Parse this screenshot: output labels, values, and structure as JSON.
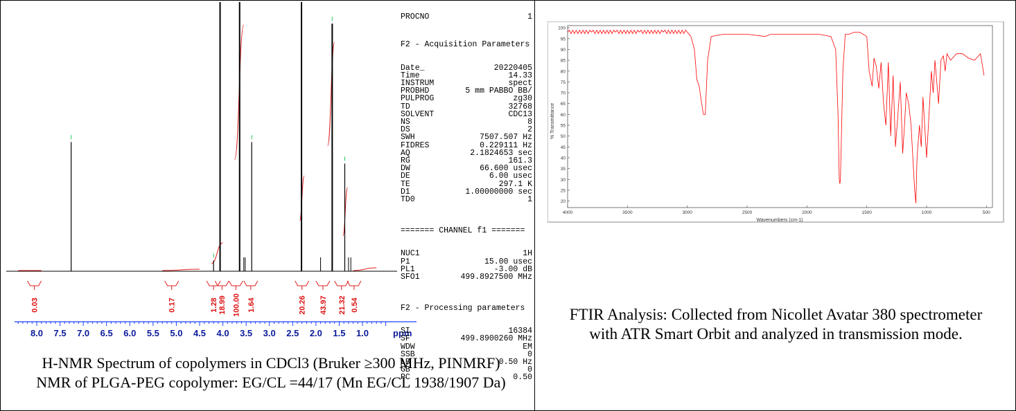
{
  "nmr": {
    "params_header_cut": "PROCNO",
    "params_header_cut_value": "1",
    "acq_title": "F2 - Acquisition Parameters",
    "acq_params": [
      {
        "k": "Date_",
        "v": "20220405"
      },
      {
        "k": "Time",
        "v": "14.33"
      },
      {
        "k": "INSTRUM",
        "v": "spect"
      },
      {
        "k": "PROBHD",
        "v": "5 mm PABBO BB/"
      },
      {
        "k": "PULPROG",
        "v": "zg30"
      },
      {
        "k": "TD",
        "v": "32768"
      },
      {
        "k": "SOLVENT",
        "v": "CDC13"
      },
      {
        "k": "NS",
        "v": "8"
      },
      {
        "k": "DS",
        "v": "2"
      },
      {
        "k": "SWH",
        "v": "7507.507 Hz"
      },
      {
        "k": "FIDRES",
        "v": "0.229111 Hz"
      },
      {
        "k": "AQ",
        "v": "2.1824653 sec"
      },
      {
        "k": "RG",
        "v": "161.3"
      },
      {
        "k": "DW",
        "v": "66.600 usec"
      },
      {
        "k": "DE",
        "v": "6.00 usec"
      },
      {
        "k": "TE",
        "v": "297.1 K"
      },
      {
        "k": "D1",
        "v": "1.00000000 sec"
      },
      {
        "k": "TD0",
        "v": "1"
      }
    ],
    "channel_title": "======= CHANNEL f1 =======",
    "channel_params": [
      {
        "k": "NUC1",
        "v": "1H"
      },
      {
        "k": "P1",
        "v": "15.00 usec"
      },
      {
        "k": "PL1",
        "v": "-3.00 dB"
      },
      {
        "k": "SFO1",
        "v": "499.8927500 MHz"
      }
    ],
    "proc_title": "F2 - Processing parameters",
    "proc_params": [
      {
        "k": "SI",
        "v": "16384"
      },
      {
        "k": "SF",
        "v": "499.8900260 MHz"
      },
      {
        "k": "WDW",
        "v": "EM"
      },
      {
        "k": "SSB",
        "v": "0"
      },
      {
        "k": "LB",
        "v": "0.50 Hz"
      },
      {
        "k": "GB",
        "v": "0"
      },
      {
        "k": "PC",
        "v": "0.50"
      }
    ],
    "caption": "H-NMR Spectrum of copolymers in CDCl3 (Bruker ≥300 MHz, PINMRF) NMR of PLGA-PEG copolymer: EG/CL =44/17 (Mn EG/CL 1938/1907 Da)"
  },
  "ftir": {
    "caption": "FTIR Analysis: Collected from Nicollet Avatar 380 spectrometer with ATR Smart Orbit and analyzed in transmission mode."
  },
  "chart_data": [
    {
      "type": "line",
      "title": "",
      "xlabel": "ppm",
      "ylabel": "",
      "x_reversed": true,
      "xlim": [
        8.4,
        0.5
      ],
      "x_ticks": [
        "8.0",
        "7.5",
        "7.0",
        "6.5",
        "6.0",
        "5.5",
        "5.0",
        "4.5",
        "4.0",
        "3.5",
        "3.0",
        "2.5",
        "2.0",
        "1.5",
        "1.0"
      ],
      "peaks": [
        {
          "ppm": 7.26,
          "height": 0.48
        },
        {
          "ppm": 4.2,
          "height": 0.04
        },
        {
          "ppm": 4.06,
          "height": 1.0
        },
        {
          "ppm": 3.64,
          "height": 1.0
        },
        {
          "ppm": 3.38,
          "height": 0.48
        },
        {
          "ppm": 2.31,
          "height": 1.0
        },
        {
          "ppm": 1.65,
          "height": 0.92
        },
        {
          "ppm": 1.38,
          "height": 0.4
        }
      ],
      "integrals": [
        {
          "label": "0.03",
          "ppm": 8.05
        },
        {
          "label": "0.17",
          "ppm": 5.1
        },
        {
          "label": "1.28",
          "ppm": 4.2
        },
        {
          "label": "18.99",
          "ppm": 4.02
        },
        {
          "label": "100.00",
          "ppm": 3.72
        },
        {
          "label": "1.64",
          "ppm": 3.4
        },
        {
          "label": "20.26",
          "ppm": 2.3
        },
        {
          "label": "43.97",
          "ppm": 1.85
        },
        {
          "label": "21.32",
          "ppm": 1.45
        },
        {
          "label": "0.54",
          "ppm": 1.18
        }
      ]
    },
    {
      "type": "line",
      "title": "",
      "xlabel": "Wavenumbers (cm-1)",
      "ylabel": "% Transmittance",
      "xlim": [
        4000,
        450
      ],
      "ylim": [
        17,
        101
      ],
      "x_ticks": [
        4000,
        3500,
        3000,
        2500,
        2000,
        1500,
        1000,
        500
      ],
      "y_ticks": [
        20,
        25,
        30,
        35,
        40,
        45,
        50,
        55,
        60,
        65,
        70,
        75,
        80,
        85,
        90,
        95,
        100
      ],
      "series": [
        {
          "color": "#ff0000",
          "x": [
            4000,
            3800,
            3600,
            3400,
            3200,
            3000,
            2970,
            2940,
            2920,
            2900,
            2880,
            2865,
            2850,
            2830,
            2800,
            2700,
            2500,
            2350,
            2300,
            2100,
            2000,
            1900,
            1800,
            1760,
            1740,
            1730,
            1725,
            1720,
            1700,
            1680,
            1650,
            1600,
            1560,
            1500,
            1480,
            1455,
            1440,
            1420,
            1400,
            1380,
            1360,
            1340,
            1320,
            1300,
            1280,
            1260,
            1240,
            1220,
            1200,
            1185,
            1170,
            1150,
            1130,
            1110,
            1100,
            1090,
            1080,
            1060,
            1045,
            1030,
            1000,
            980,
            960,
            945,
            930,
            900,
            880,
            860,
            845,
            830,
            800,
            750,
            700,
            650,
            600,
            550,
            520
          ],
          "y": [
            98,
            98,
            98,
            98,
            98,
            98,
            96,
            90,
            76,
            73,
            65,
            60,
            60,
            85,
            96,
            97,
            97,
            96,
            97,
            97,
            97,
            97,
            96,
            90,
            60,
            30,
            28,
            30,
            80,
            97,
            97,
            98,
            98,
            96,
            80,
            73,
            86,
            82,
            72,
            84,
            65,
            55,
            84,
            50,
            78,
            45,
            60,
            75,
            42,
            55,
            70,
            65,
            55,
            35,
            25,
            19,
            40,
            55,
            45,
            68,
            40,
            60,
            80,
            70,
            85,
            65,
            85,
            87,
            80,
            88,
            85,
            88,
            88,
            86,
            85,
            88,
            78
          ]
        }
      ]
    }
  ]
}
